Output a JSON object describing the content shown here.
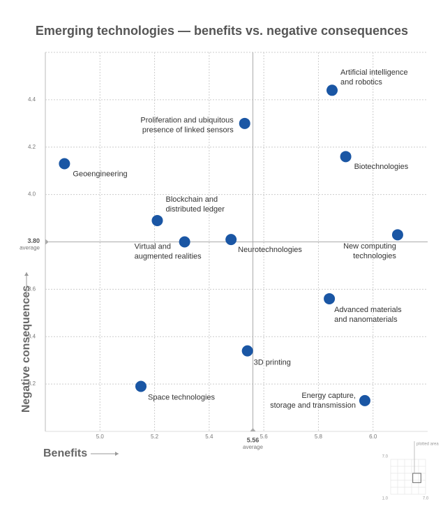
{
  "chart_data": {
    "type": "scatter",
    "title": "Emerging technologies — benefits vs. negative consequences",
    "x_label": "Benefits",
    "y_label": "Negative consequences",
    "labels": [
      [
        "Artificial intelligence",
        "and robotics"
      ],
      [
        "Proliferation and ubiquitous",
        "presence of linked sensors"
      ],
      [
        "Geoengineering"
      ],
      [
        "Biotechnologies"
      ],
      [
        "Blockchain and",
        "distributed ledger"
      ],
      [
        "Virtual and",
        "augmented realities"
      ],
      [
        "Neurotechnologies"
      ],
      [
        "New computing",
        "technologies"
      ],
      [
        "Advanced materials",
        "and nanomaterials"
      ],
      [
        "3D printing"
      ],
      [
        "Space technologies"
      ],
      [
        "Energy capture,",
        "storage and transmission"
      ]
    ],
    "x": [
      5.85,
      5.53,
      4.87,
      5.9,
      5.21,
      5.31,
      5.48,
      6.09,
      5.84,
      5.54,
      5.15,
      5.97
    ],
    "values": [
      4.44,
      4.3,
      4.13,
      4.16,
      3.89,
      3.8,
      3.81,
      3.83,
      3.56,
      3.34,
      3.19,
      3.13
    ],
    "color": "#1a56a4",
    "xlim": [
      4.8,
      6.2
    ],
    "ylim": [
      3.0,
      4.6
    ],
    "xticks": [
      {
        "value": 5,
        "label": "5.0"
      },
      5.2,
      5.4,
      5.6,
      5.8,
      {
        "value": 6,
        "label": "6.0"
      }
    ],
    "yticks": [
      3.2,
      3.4,
      3.6,
      {
        "value": 4,
        "label": "4.0"
      },
      4.2,
      4.4
    ],
    "grid": true,
    "averages": {
      "x": 5.56,
      "y": {
        "value": 3.8,
        "label": "3.80"
      },
      "label": "average"
    },
    "inset": {
      "label": "plotted area",
      "ticks": [
        {
          "value": 1,
          "label": "1.0"
        },
        {
          "value": 7,
          "label": "7.0"
        }
      ]
    }
  }
}
